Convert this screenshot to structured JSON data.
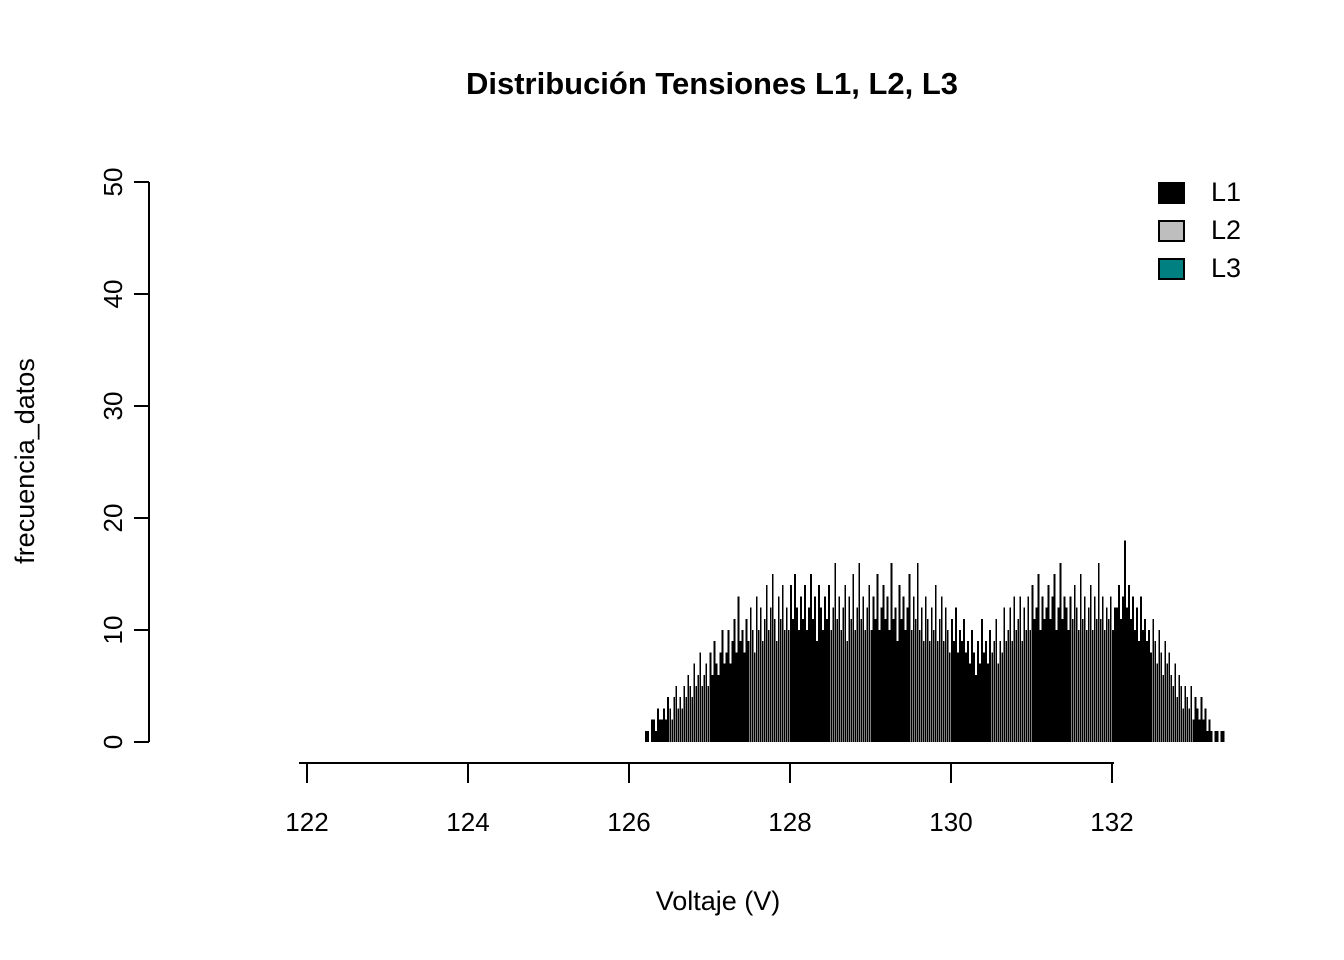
{
  "chart_data": {
    "type": "bar",
    "title": "Distribución Tensiones L1, L2, L3",
    "xlabel": "Voltaje (V)",
    "ylabel": "frecuencia_datos",
    "xticks": [
      122,
      124,
      126,
      128,
      130,
      132
    ],
    "yticks": [
      0,
      10,
      20,
      30,
      40,
      50
    ],
    "xlim": [
      121.8,
      133.6
    ],
    "ylim": [
      0,
      50
    ],
    "grid": false,
    "legend": {
      "position": "top-right",
      "items": [
        {
          "label": "L1",
          "color": "#000000"
        },
        {
          "label": "L2",
          "color": "#BEBEBE"
        },
        {
          "label": "L3",
          "color": "#008080"
        }
      ]
    },
    "series": [
      {
        "name": "L1",
        "color": "#000000",
        "bin_start": 126.2,
        "bin_width": 0.025,
        "heights": [
          1,
          1,
          0,
          2,
          2,
          1,
          3,
          2,
          2,
          3,
          2,
          4,
          3,
          2,
          4,
          5,
          3,
          4,
          3,
          5,
          4,
          6,
          5,
          4,
          7,
          5,
          6,
          8,
          5,
          6,
          7,
          5,
          8,
          6,
          9,
          7,
          6,
          8,
          10,
          7,
          8,
          10,
          7,
          9,
          11,
          8,
          13,
          9,
          10,
          8,
          11,
          9,
          12,
          10,
          8,
          13,
          10,
          12,
          9,
          11,
          14,
          10,
          12,
          15,
          11,
          9,
          13,
          11,
          14,
          10,
          12,
          10,
          14,
          11,
          15,
          12,
          10,
          13,
          11,
          14,
          10,
          12,
          15,
          11,
          13,
          9,
          14,
          12,
          10,
          13,
          11,
          14,
          10,
          12,
          16,
          11,
          13,
          10,
          12,
          14,
          9,
          13,
          11,
          15,
          10,
          12,
          16,
          11,
          13,
          10,
          12,
          14,
          10,
          13,
          11,
          15,
          10,
          12,
          14,
          11,
          13,
          10,
          16,
          11,
          12,
          9,
          14,
          11,
          13,
          10,
          12,
          15,
          10,
          13,
          11,
          16,
          10,
          12,
          9,
          13,
          11,
          9,
          12,
          10,
          14,
          9,
          11,
          13,
          9,
          12,
          10,
          8,
          11,
          9,
          12,
          8,
          10,
          9,
          11,
          8,
          9,
          7,
          10,
          8,
          6,
          9,
          7,
          11,
          8,
          9,
          7,
          10,
          8,
          9,
          11,
          7,
          9,
          8,
          12,
          9,
          10,
          12,
          9,
          13,
          10,
          11,
          13,
          9,
          12,
          10,
          13,
          10,
          14,
          11,
          12,
          15,
          10,
          13,
          11,
          12,
          14,
          11,
          13,
          15,
          10,
          12,
          16,
          11,
          13,
          12,
          10,
          13,
          11,
          14,
          12,
          10,
          15,
          11,
          13,
          10,
          12,
          14,
          10,
          13,
          11,
          16,
          11,
          13,
          10,
          12,
          11,
          13,
          10,
          12,
          12,
          14,
          11,
          13,
          18,
          12,
          14,
          11,
          13,
          10,
          12,
          9,
          13,
          10,
          11,
          9,
          10,
          8,
          11,
          9,
          7,
          10,
          8,
          6,
          9,
          7,
          8,
          6,
          5,
          7,
          4,
          6,
          5,
          3,
          5,
          4,
          3,
          5,
          2,
          4,
          3,
          2,
          4,
          2,
          3,
          1,
          2,
          1,
          0,
          1,
          1,
          0,
          1,
          1
        ]
      }
    ]
  }
}
